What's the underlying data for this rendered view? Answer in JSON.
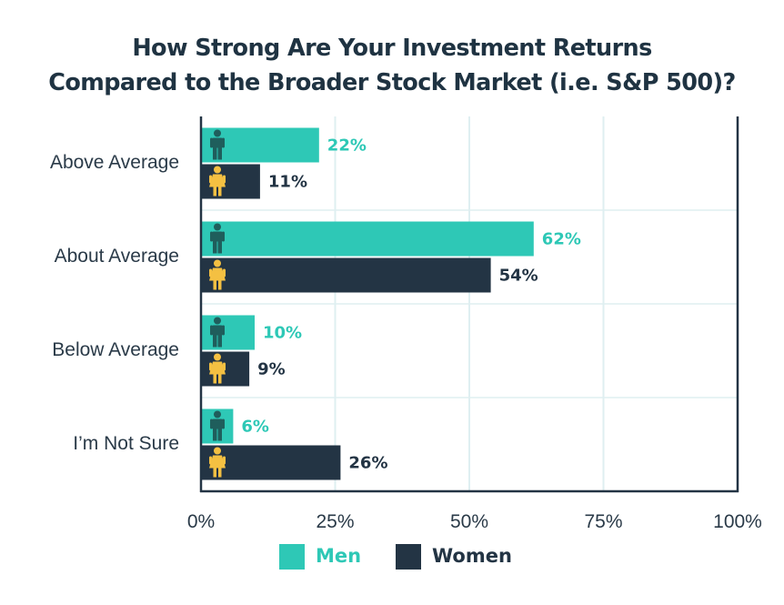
{
  "title_lines": [
    "How Strong Are Your Investment Returns",
    "Compared to the Broader Stock Market (i.e. S&P 500)?"
  ],
  "colors": {
    "men": "#2ec8b6",
    "women": "#233444",
    "icon_men": "#1f5e5c",
    "icon_women": "#f4c042",
    "grid": "#dfeff1",
    "axis": "#233444",
    "text": "#2a3a48"
  },
  "legend": {
    "men_label": "Men",
    "women_label": "Women",
    "men_icon": "man-icon",
    "women_icon": "woman-icon"
  },
  "chart_data": {
    "type": "bar",
    "orientation": "horizontal",
    "title": "How Strong Are Your Investment Returns Compared to the Broader Stock Market (i.e. S&P 500)?",
    "categories": [
      "Above Average",
      "About Average",
      "Below Average",
      "I’m Not Sure"
    ],
    "series": [
      {
        "name": "Men",
        "values": [
          22,
          62,
          10,
          6
        ],
        "labels": [
          "22%",
          "62%",
          "10%",
          "6%"
        ]
      },
      {
        "name": "Women",
        "values": [
          11,
          54,
          9,
          26
        ],
        "labels": [
          "11%",
          "54%",
          "9%",
          "26%"
        ]
      }
    ],
    "xlim": [
      0,
      100
    ],
    "xticks": [
      0,
      25,
      50,
      75,
      100
    ],
    "xtick_labels": [
      "0%",
      "25%",
      "50%",
      "75%",
      "100%"
    ],
    "grid": true,
    "legend_position": "bottom"
  }
}
